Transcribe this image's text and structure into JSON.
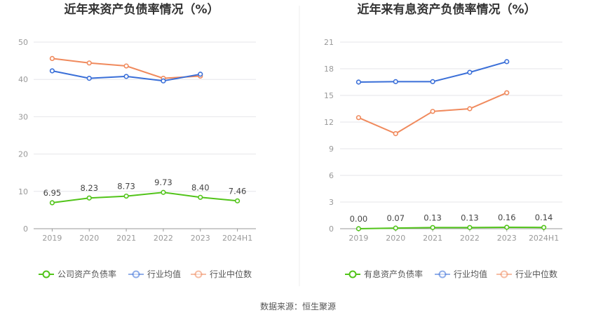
{
  "source_text": "数据来源：恒生聚源",
  "chart_data": [
    {
      "type": "line",
      "title": "近年来资产负债率情况（%）",
      "categories": [
        "2019",
        "2020",
        "2021",
        "2022",
        "2023",
        "2024H1"
      ],
      "ylim": [
        0,
        50
      ],
      "yticks": [
        0,
        10,
        20,
        30,
        40,
        50
      ],
      "grid": true,
      "legend_position": "bottom",
      "series": [
        {
          "name": "公司资产负债率",
          "color": "#52c41a",
          "values": [
            6.95,
            8.23,
            8.73,
            9.73,
            8.4,
            7.46
          ],
          "labels": [
            "6.95",
            "8.23",
            "8.73",
            "9.73",
            "8.40",
            "7.46"
          ]
        },
        {
          "name": "行业均值",
          "color": "#3a6fd8",
          "values": [
            42.3,
            40.3,
            40.8,
            39.6,
            41.4,
            null
          ]
        },
        {
          "name": "行业中位数",
          "color": "#f08a5d",
          "values": [
            45.6,
            44.4,
            43.6,
            40.3,
            40.9,
            null
          ]
        }
      ]
    },
    {
      "type": "line",
      "title": "近年来有息资产负债率情况（%）",
      "categories": [
        "2019",
        "2020",
        "2021",
        "2022",
        "2023",
        "2024H1"
      ],
      "ylim": [
        0,
        21
      ],
      "yticks": [
        0,
        3,
        6,
        9,
        12,
        15,
        18,
        21
      ],
      "grid": true,
      "legend_position": "bottom",
      "series": [
        {
          "name": "有息资产负债率",
          "color": "#52c41a",
          "values": [
            0.0,
            0.07,
            0.13,
            0.13,
            0.16,
            0.14
          ],
          "labels": [
            "0.00",
            "0.07",
            "0.13",
            "0.13",
            "0.16",
            "0.14"
          ]
        },
        {
          "name": "行业均值",
          "color": "#3a6fd8",
          "values": [
            16.5,
            16.55,
            16.55,
            17.6,
            18.8,
            null
          ]
        },
        {
          "name": "行业中位数",
          "color": "#f08a5d",
          "values": [
            12.5,
            10.7,
            13.2,
            13.5,
            15.3,
            null
          ]
        }
      ]
    }
  ]
}
